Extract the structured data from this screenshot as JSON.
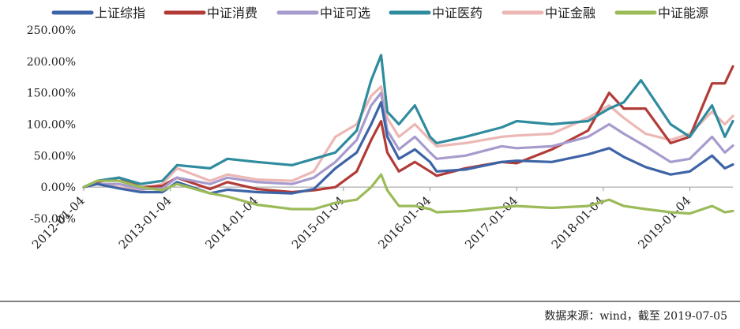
{
  "source_note": "数据来源：wind，截至 2019-07-05",
  "chart_data": {
    "type": "line",
    "x_ticks": [
      "2012-01-04",
      "2013-01-04",
      "2014-01-04",
      "2015-01-04",
      "2016-01-04",
      "2017-01-04",
      "2018-01-04",
      "2019-01-04"
    ],
    "y_ticks": [
      "250.00%",
      "200.00%",
      "150.00%",
      "100.00%",
      "50.00%",
      "0.00%",
      "-50.00%"
    ],
    "ylim": [
      -50,
      250
    ],
    "xlim": [
      "2012-01-04",
      "2019-07-05"
    ],
    "legend_position": "top",
    "series": [
      {
        "name": "上证综指",
        "color": "#3c64a6",
        "points": [
          [
            "2012-01-04",
            0
          ],
          [
            "2012-03-01",
            5
          ],
          [
            "2012-06-01",
            -2
          ],
          [
            "2012-09-01",
            -8
          ],
          [
            "2012-12-01",
            -8
          ],
          [
            "2013-02-01",
            8
          ],
          [
            "2013-06-20",
            -10
          ],
          [
            "2013-09-01",
            -4
          ],
          [
            "2014-01-04",
            -8
          ],
          [
            "2014-06-01",
            -10
          ],
          [
            "2014-09-01",
            -3
          ],
          [
            "2014-12-01",
            30
          ],
          [
            "2015-03-01",
            55
          ],
          [
            "2015-05-01",
            100
          ],
          [
            "2015-06-12",
            135
          ],
          [
            "2015-07-08",
            80
          ],
          [
            "2015-08-26",
            45
          ],
          [
            "2015-11-01",
            60
          ],
          [
            "2016-01-04",
            40
          ],
          [
            "2016-02-01",
            25
          ],
          [
            "2016-06-01",
            28
          ],
          [
            "2016-11-01",
            40
          ],
          [
            "2017-01-04",
            42
          ],
          [
            "2017-06-01",
            40
          ],
          [
            "2017-11-01",
            52
          ],
          [
            "2018-01-29",
            62
          ],
          [
            "2018-04-01",
            48
          ],
          [
            "2018-07-01",
            32
          ],
          [
            "2018-10-15",
            20
          ],
          [
            "2019-01-04",
            25
          ],
          [
            "2019-04-08",
            50
          ],
          [
            "2019-06-01",
            30
          ],
          [
            "2019-07-05",
            36
          ]
        ]
      },
      {
        "name": "中证消费",
        "color": "#b23b37",
        "points": [
          [
            "2012-01-04",
            0
          ],
          [
            "2012-03-01",
            8
          ],
          [
            "2012-06-01",
            15
          ],
          [
            "2012-09-01",
            0
          ],
          [
            "2012-12-01",
            2
          ],
          [
            "2013-02-01",
            15
          ],
          [
            "2013-06-20",
            -3
          ],
          [
            "2013-09-01",
            8
          ],
          [
            "2014-01-04",
            -3
          ],
          [
            "2014-06-01",
            -8
          ],
          [
            "2014-09-01",
            -5
          ],
          [
            "2014-12-01",
            0
          ],
          [
            "2015-03-01",
            25
          ],
          [
            "2015-05-01",
            75
          ],
          [
            "2015-06-12",
            105
          ],
          [
            "2015-07-08",
            55
          ],
          [
            "2015-08-26",
            25
          ],
          [
            "2015-11-01",
            40
          ],
          [
            "2016-01-04",
            25
          ],
          [
            "2016-02-01",
            18
          ],
          [
            "2016-06-01",
            30
          ],
          [
            "2016-11-01",
            40
          ],
          [
            "2017-01-04",
            38
          ],
          [
            "2017-06-01",
            60
          ],
          [
            "2017-11-01",
            90
          ],
          [
            "2018-01-29",
            150
          ],
          [
            "2018-04-01",
            125
          ],
          [
            "2018-07-01",
            125
          ],
          [
            "2018-10-15",
            70
          ],
          [
            "2019-01-04",
            80
          ],
          [
            "2019-04-08",
            165
          ],
          [
            "2019-06-01",
            165
          ],
          [
            "2019-07-05",
            192
          ]
        ]
      },
      {
        "name": "中证可选",
        "color": "#a79bcd",
        "points": [
          [
            "2012-01-04",
            0
          ],
          [
            "2012-03-01",
            5
          ],
          [
            "2012-06-01",
            5
          ],
          [
            "2012-09-01",
            -3
          ],
          [
            "2012-12-01",
            -2
          ],
          [
            "2013-02-01",
            15
          ],
          [
            "2013-06-20",
            5
          ],
          [
            "2013-09-01",
            15
          ],
          [
            "2014-01-04",
            8
          ],
          [
            "2014-06-01",
            5
          ],
          [
            "2014-09-01",
            15
          ],
          [
            "2014-12-01",
            40
          ],
          [
            "2015-03-01",
            75
          ],
          [
            "2015-05-01",
            130
          ],
          [
            "2015-06-12",
            150
          ],
          [
            "2015-07-08",
            90
          ],
          [
            "2015-08-26",
            60
          ],
          [
            "2015-11-01",
            80
          ],
          [
            "2016-01-04",
            55
          ],
          [
            "2016-02-01",
            45
          ],
          [
            "2016-06-01",
            50
          ],
          [
            "2016-11-01",
            65
          ],
          [
            "2017-01-04",
            62
          ],
          [
            "2017-06-01",
            65
          ],
          [
            "2017-11-01",
            80
          ],
          [
            "2018-01-29",
            100
          ],
          [
            "2018-04-01",
            85
          ],
          [
            "2018-07-01",
            65
          ],
          [
            "2018-10-15",
            40
          ],
          [
            "2019-01-04",
            45
          ],
          [
            "2019-04-08",
            80
          ],
          [
            "2019-06-01",
            55
          ],
          [
            "2019-07-05",
            66
          ]
        ]
      },
      {
        "name": "中证医药",
        "color": "#2f8b9e",
        "points": [
          [
            "2012-01-04",
            0
          ],
          [
            "2012-03-01",
            10
          ],
          [
            "2012-06-01",
            15
          ],
          [
            "2012-09-01",
            5
          ],
          [
            "2012-12-01",
            10
          ],
          [
            "2013-02-01",
            35
          ],
          [
            "2013-06-20",
            30
          ],
          [
            "2013-09-01",
            45
          ],
          [
            "2014-01-04",
            40
          ],
          [
            "2014-06-01",
            35
          ],
          [
            "2014-09-01",
            45
          ],
          [
            "2014-12-01",
            55
          ],
          [
            "2015-03-01",
            90
          ],
          [
            "2015-05-01",
            170
          ],
          [
            "2015-06-12",
            210
          ],
          [
            "2015-07-08",
            120
          ],
          [
            "2015-08-26",
            100
          ],
          [
            "2015-11-01",
            130
          ],
          [
            "2016-01-04",
            80
          ],
          [
            "2016-02-01",
            70
          ],
          [
            "2016-06-01",
            80
          ],
          [
            "2016-11-01",
            95
          ],
          [
            "2017-01-04",
            105
          ],
          [
            "2017-06-01",
            100
          ],
          [
            "2017-11-01",
            105
          ],
          [
            "2018-01-29",
            125
          ],
          [
            "2018-04-01",
            135
          ],
          [
            "2018-06-12",
            170
          ],
          [
            "2018-10-15",
            100
          ],
          [
            "2019-01-04",
            80
          ],
          [
            "2019-04-08",
            130
          ],
          [
            "2019-06-01",
            80
          ],
          [
            "2019-07-05",
            105
          ]
        ]
      },
      {
        "name": "中证金融",
        "color": "#ecb7b4",
        "points": [
          [
            "2012-01-04",
            0
          ],
          [
            "2012-03-01",
            5
          ],
          [
            "2012-06-01",
            0
          ],
          [
            "2012-09-01",
            -5
          ],
          [
            "2012-12-01",
            5
          ],
          [
            "2013-02-01",
            30
          ],
          [
            "2013-06-20",
            10
          ],
          [
            "2013-09-01",
            20
          ],
          [
            "2014-01-04",
            12
          ],
          [
            "2014-06-01",
            10
          ],
          [
            "2014-09-01",
            25
          ],
          [
            "2014-12-01",
            80
          ],
          [
            "2015-03-01",
            100
          ],
          [
            "2015-05-01",
            145
          ],
          [
            "2015-06-12",
            160
          ],
          [
            "2015-07-08",
            110
          ],
          [
            "2015-08-26",
            80
          ],
          [
            "2015-11-01",
            100
          ],
          [
            "2016-01-04",
            75
          ],
          [
            "2016-02-01",
            65
          ],
          [
            "2016-06-01",
            70
          ],
          [
            "2016-11-01",
            80
          ],
          [
            "2017-01-04",
            82
          ],
          [
            "2017-06-01",
            85
          ],
          [
            "2017-11-01",
            110
          ],
          [
            "2018-01-29",
            130
          ],
          [
            "2018-04-01",
            110
          ],
          [
            "2018-07-01",
            85
          ],
          [
            "2018-10-15",
            75
          ],
          [
            "2019-01-04",
            85
          ],
          [
            "2019-04-08",
            120
          ],
          [
            "2019-06-01",
            100
          ],
          [
            "2019-07-05",
            113
          ]
        ]
      },
      {
        "name": "中证能源",
        "color": "#9bbb59",
        "points": [
          [
            "2012-01-04",
            0
          ],
          [
            "2012-03-01",
            10
          ],
          [
            "2012-06-01",
            10
          ],
          [
            "2012-09-01",
            0
          ],
          [
            "2012-12-01",
            -5
          ],
          [
            "2013-02-01",
            5
          ],
          [
            "2013-06-20",
            -10
          ],
          [
            "2013-09-01",
            -15
          ],
          [
            "2014-01-04",
            -28
          ],
          [
            "2014-06-01",
            -35
          ],
          [
            "2014-09-01",
            -35
          ],
          [
            "2014-12-01",
            -25
          ],
          [
            "2015-03-01",
            -20
          ],
          [
            "2015-05-01",
            0
          ],
          [
            "2015-06-12",
            20
          ],
          [
            "2015-07-08",
            -5
          ],
          [
            "2015-08-26",
            -30
          ],
          [
            "2015-11-01",
            -30
          ],
          [
            "2016-01-04",
            -35
          ],
          [
            "2016-02-01",
            -40
          ],
          [
            "2016-06-01",
            -38
          ],
          [
            "2016-11-01",
            -32
          ],
          [
            "2017-01-04",
            -30
          ],
          [
            "2017-06-01",
            -33
          ],
          [
            "2017-11-01",
            -30
          ],
          [
            "2018-01-29",
            -20
          ],
          [
            "2018-04-01",
            -30
          ],
          [
            "2018-07-01",
            -35
          ],
          [
            "2018-10-15",
            -40
          ],
          [
            "2019-01-04",
            -42
          ],
          [
            "2019-04-08",
            -30
          ],
          [
            "2019-06-01",
            -40
          ],
          [
            "2019-07-05",
            -38
          ]
        ]
      }
    ]
  }
}
